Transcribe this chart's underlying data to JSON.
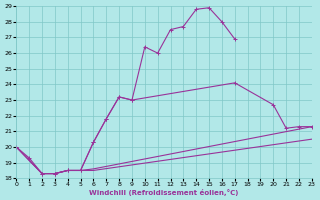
{
  "xlabel": "Windchill (Refroidissement éolien,°C)",
  "bg_color": "#b2e8e8",
  "grid_color": "#80c8c8",
  "line_color": "#993399",
  "xlim": [
    0,
    23
  ],
  "ylim": [
    18,
    29
  ],
  "xticks": [
    0,
    1,
    2,
    3,
    4,
    5,
    6,
    7,
    8,
    9,
    10,
    11,
    12,
    13,
    14,
    15,
    16,
    17,
    18,
    19,
    20,
    21,
    22,
    23
  ],
  "yticks": [
    18,
    19,
    20,
    21,
    22,
    23,
    24,
    25,
    26,
    27,
    28,
    29
  ],
  "curves": [
    {
      "x": [
        0,
        1,
        2,
        3,
        4,
        5,
        6,
        7,
        8,
        9,
        10,
        11,
        12,
        13,
        14,
        15,
        16,
        17
      ],
      "y": [
        20.0,
        19.3,
        18.3,
        18.3,
        18.5,
        18.5,
        20.3,
        21.8,
        23.2,
        23.0,
        26.4,
        26.0,
        27.5,
        27.7,
        28.8,
        28.9,
        28.0,
        26.9
      ],
      "marker": "+",
      "lw": 0.8
    },
    {
      "x": [
        0,
        2,
        3,
        4,
        5,
        6,
        7,
        8,
        9,
        17,
        20,
        21,
        22,
        23
      ],
      "y": [
        20.0,
        18.3,
        18.3,
        18.5,
        18.5,
        20.3,
        21.8,
        23.2,
        23.0,
        24.1,
        22.7,
        21.2,
        21.3,
        21.3
      ],
      "marker": "+",
      "lw": 0.8
    },
    {
      "x": [
        0,
        2,
        3,
        4,
        5,
        6,
        23
      ],
      "y": [
        20.0,
        18.3,
        18.3,
        18.5,
        18.5,
        18.6,
        21.3
      ],
      "marker": "None",
      "lw": 0.8
    },
    {
      "x": [
        0,
        2,
        3,
        4,
        5,
        6,
        23
      ],
      "y": [
        20.0,
        18.3,
        18.3,
        18.5,
        18.5,
        18.5,
        20.5
      ],
      "marker": "None",
      "lw": 0.8
    }
  ]
}
